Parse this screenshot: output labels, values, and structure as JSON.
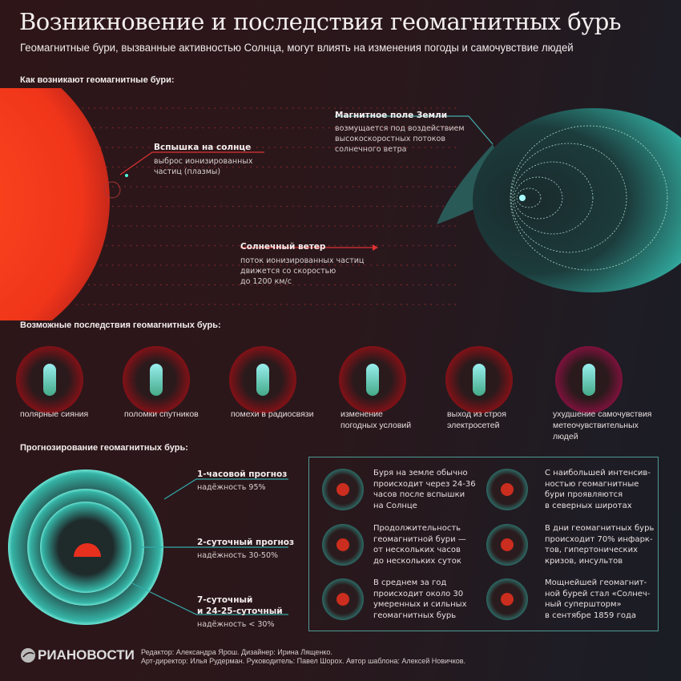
{
  "header": {
    "title": "Возникновение и последствия геомагнитных бурь",
    "subtitle": "Геомагнитные бури, вызванные активностью Солнца, могут влиять на изменения погоды и самочувствие людей"
  },
  "origin": {
    "heading": "Как возникают геомагнитные бури:",
    "flare": {
      "title": "Вспышка на солнце",
      "lines": [
        "выброс ионизированных",
        "частиц (плазмы)"
      ]
    },
    "field": {
      "title": "Магнитное поле Земли",
      "lines": [
        "возмущается под воздействием",
        "высокоскоростных потоков",
        "солнечного ветра"
      ]
    },
    "wind": {
      "title": "Солнечный ветер",
      "lines": [
        "поток ионизированных частиц",
        "движется со скоростью",
        "до 1200 км/с"
      ]
    }
  },
  "consequences": {
    "heading": "Возможные последствия геомагнитных бурь:",
    "items": [
      {
        "icon": "aurora-icon",
        "lines": [
          "полярные сияния"
        ]
      },
      {
        "icon": "satellite-icon",
        "lines": [
          "поломки спутников"
        ]
      },
      {
        "icon": "radio-wave-icon",
        "lines": [
          "помехи в радиосвязи"
        ]
      },
      {
        "icon": "cyclone-icon",
        "lines": [
          "изменение",
          "погодных условий"
        ]
      },
      {
        "icon": "power-line-icon",
        "lines": [
          "выход из строя",
          "электросетей"
        ]
      },
      {
        "icon": "pill-icon",
        "lines": [
          "ухудшение самочувствия",
          "метеочувствительных",
          "людей"
        ]
      }
    ]
  },
  "forecast": {
    "heading": "Прогнозирование геомагнитных бурь:",
    "items": [
      {
        "title": [
          "1-часовой прогноз"
        ],
        "reliability": "надёжность 95%",
        "value": 95
      },
      {
        "title": [
          "2-суточный прогноз"
        ],
        "reliability": "надёжность 30-50%"
      },
      {
        "title": [
          "7-суточный",
          "и 24-25-суточный"
        ],
        "reliability": "надёжность < 30%"
      }
    ]
  },
  "facts": [
    {
      "icon": "sun-icon",
      "lines": [
        "Буря на земле обычно",
        "происходит через 24-36",
        "часов после вспышки",
        "на Солнце"
      ]
    },
    {
      "icon": "globe-icon",
      "lines": [
        "С наибольшей интенсив-",
        "ностью геомагнитные",
        "бури проявляются",
        "в северных широтах"
      ]
    },
    {
      "icon": "clock-icon",
      "lines": [
        "Продолжительность",
        "геомагнитной бури —",
        "от нескольких часов",
        "до нескольких суток"
      ]
    },
    {
      "icon": "medical-cross-icon",
      "lines": [
        "В дни геомагнитных бурь",
        "происходит 70% инфарк-",
        "тов, гипертонических",
        "кризов, инсультов"
      ]
    },
    {
      "icon": "flare-icon",
      "lines": [
        "В среднем за год",
        "происходит около 30",
        "умеренных и сильных",
        "геомагнитных бурь"
      ]
    },
    {
      "icon": "spiral-icon",
      "lines": [
        "Мощнейшей геомагнит-",
        "ной бурей стал «Солнеч-",
        "ный супершторм»",
        "в сентябре 1859 года"
      ]
    }
  ],
  "footer": {
    "logo": "РИАНОВОСТИ",
    "credits": [
      "Редактор: Александра Ярош. Дизайнер: Ирина Лященко.",
      "Арт-директор: Илья Рудерман. Руководитель: Павел Шорох. Автор шаблона: Алексей Новичков."
    ]
  },
  "colors": {
    "red": "#e8301e",
    "teal": "#3fc4b5",
    "background": "#2a171b"
  }
}
